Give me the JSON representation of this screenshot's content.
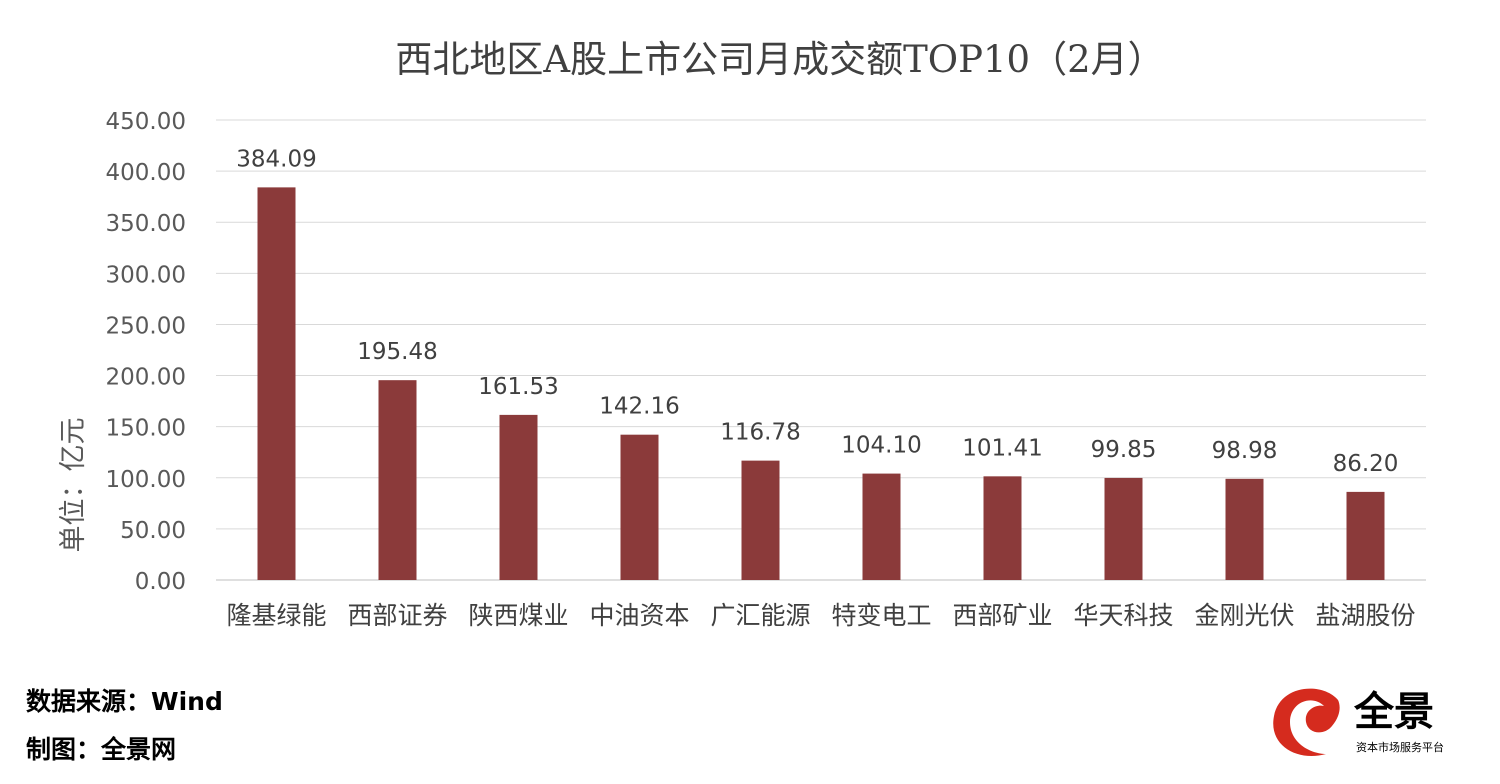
{
  "chart_data": {
    "type": "bar",
    "title": "西北地区A股上市公司月成交额TOP10（2月）",
    "ylabel": "单位：亿元",
    "xlabel": "",
    "categories": [
      "隆基绿能",
      "西部证券",
      "陕西煤业",
      "中油资本",
      "广汇能源",
      "特变电工",
      "西部矿业",
      "华天科技",
      "金刚光伏",
      "盐湖股份"
    ],
    "values": [
      384.09,
      195.48,
      161.53,
      142.16,
      116.78,
      104.1,
      101.41,
      99.85,
      98.98,
      86.2
    ],
    "data_labels": [
      "384.09",
      "195.48",
      "161.53",
      "142.16",
      "116.78",
      "104.10",
      "101.41",
      "99.85",
      "98.98",
      "86.20"
    ],
    "ylim": [
      0,
      450
    ],
    "yticks": [
      "0.00",
      "50.00",
      "100.00",
      "150.00",
      "200.00",
      "250.00",
      "300.00",
      "350.00",
      "400.00",
      "450.00"
    ],
    "ytick_values": [
      0,
      50,
      100,
      150,
      200,
      250,
      300,
      350,
      400,
      450
    ],
    "grid": true,
    "legend": "none",
    "bar_color": "#8b3a3a"
  },
  "footer": {
    "source": "数据来源：Wind",
    "credit": "制图：全景网"
  },
  "logo": {
    "name": "全景",
    "tagline": "资本市场服务平台",
    "color": "#d52b1e"
  }
}
